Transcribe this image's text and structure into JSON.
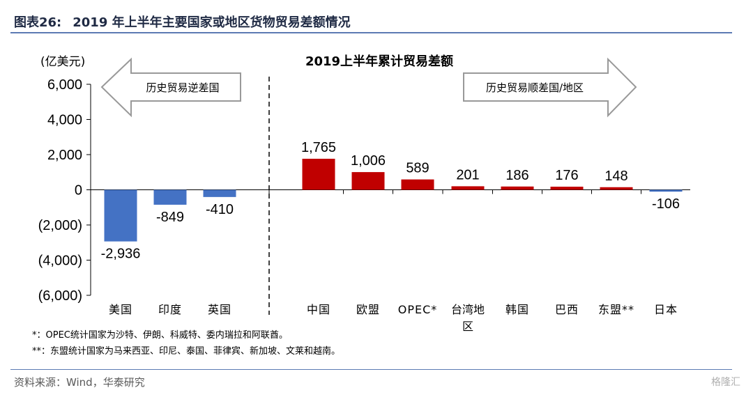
{
  "figure": {
    "number": "图表26:",
    "title": "2019 年上半年主要国家或地区货物贸易差额情况"
  },
  "source": "资料来源：Wind，华泰研究",
  "watermark": "格隆汇",
  "notes": [
    "*：OPEC统计国家为沙特、伊朗、科威特、委内瑞拉和阿联酋。",
    "**：东盟统计国家为马来西亚、印尼、泰国、菲律宾、新加坡、文莱和越南。"
  ],
  "chart_data": {
    "type": "bar",
    "title": "2019上半年累计贸易差额",
    "ylabel": "(亿美元)",
    "categories": [
      "美国",
      "印度",
      "英国",
      "中国",
      "欧盟",
      "OPEC*",
      "台湾地区",
      "韩国",
      "巴西",
      "东盟**",
      "日本"
    ],
    "values": [
      -2936,
      -849,
      -410,
      1765,
      1006,
      589,
      201,
      186,
      176,
      148,
      -106
    ],
    "data_labels": [
      "-2,936",
      "-849",
      "-410",
      "1,765",
      "1,006",
      "589",
      "201",
      "186",
      "176",
      "148",
      "-106"
    ],
    "ylim": [
      -6000,
      6000
    ],
    "yticks": [
      6000,
      4000,
      2000,
      0,
      -2000,
      -4000,
      -6000
    ],
    "ytick_labels": [
      "6,000",
      "4,000",
      "2,000",
      "0",
      "(2,000)",
      "(4,000)",
      "(6,000)"
    ],
    "annotations": {
      "left_arrow": "历史贸易逆差国",
      "right_arrow": "历史贸易顺差国/地区"
    },
    "colors": {
      "deficit": "#4472c4",
      "surplus": "#c00000"
    },
    "grid": false,
    "legend": "none"
  }
}
